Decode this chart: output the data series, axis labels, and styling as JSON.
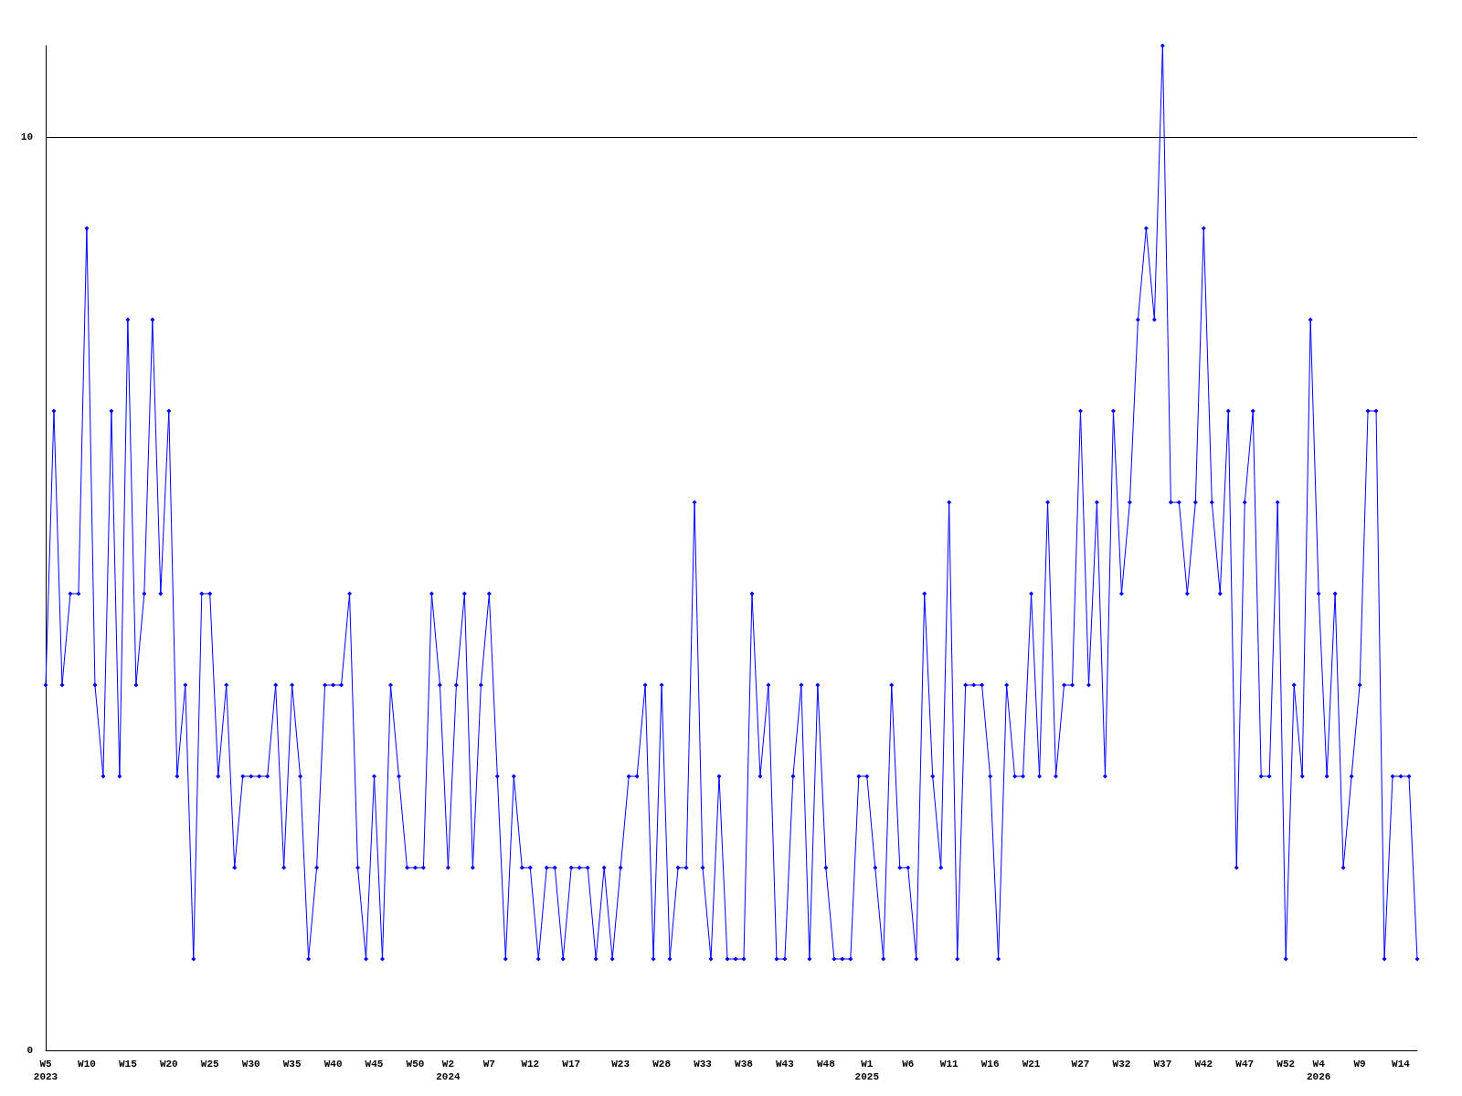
{
  "chart_data": {
    "type": "line",
    "categories": [
      "W5\n2023",
      null,
      null,
      null,
      null,
      "W10",
      null,
      null,
      null,
      null,
      "W15",
      null,
      null,
      null,
      null,
      "W20",
      null,
      null,
      null,
      null,
      "W25",
      null,
      null,
      null,
      null,
      "W30",
      null,
      null,
      null,
      null,
      "W35",
      null,
      null,
      null,
      null,
      "W40",
      null,
      null,
      null,
      null,
      "W45",
      null,
      null,
      null,
      null,
      "W50",
      null,
      null,
      null,
      "W2\n2024",
      null,
      null,
      null,
      null,
      "W7",
      null,
      null,
      null,
      null,
      "W12",
      null,
      null,
      null,
      null,
      "W17",
      null,
      null,
      null,
      null,
      null,
      "W23",
      null,
      null,
      null,
      null,
      "W28",
      null,
      null,
      null,
      null,
      "W33",
      null,
      null,
      null,
      null,
      "W38",
      null,
      null,
      null,
      null,
      "W43",
      null,
      null,
      null,
      null,
      "W48",
      null,
      null,
      null,
      null,
      "W1\n2025",
      null,
      null,
      null,
      null,
      "W6",
      null,
      null,
      null,
      null,
      "W11",
      null,
      null,
      null,
      null,
      "W16",
      null,
      null,
      null,
      null,
      "W21",
      null,
      null,
      null,
      null,
      null,
      "W27",
      null,
      null,
      null,
      null,
      "W32",
      null,
      null,
      null,
      null,
      "W37",
      null,
      null,
      null,
      null,
      "W42",
      null,
      null,
      null,
      null,
      "W47",
      null,
      null,
      null,
      null,
      "W52",
      null,
      null,
      null,
      "W4\n2026",
      null,
      null,
      null,
      null,
      "W9",
      null,
      null,
      null,
      null,
      "W14",
      null,
      null
    ],
    "series": [
      {
        "color": "#0000ff",
        "values": [
          4,
          7,
          4,
          5,
          5,
          9,
          4,
          3,
          7,
          3,
          8,
          4,
          5,
          8,
          5,
          7,
          3,
          4,
          1,
          5,
          5,
          3,
          4,
          2,
          3,
          3,
          3,
          3,
          4,
          2,
          4,
          3,
          1,
          2,
          4,
          4,
          4,
          5,
          2,
          1,
          3,
          1,
          4,
          3,
          2,
          2,
          2,
          5,
          4,
          2,
          4,
          5,
          2,
          4,
          5,
          3,
          1,
          3,
          2,
          2,
          1,
          2,
          2,
          1,
          2,
          2,
          2,
          1,
          2,
          1,
          2,
          3,
          3,
          4,
          1,
          4,
          1,
          2,
          2,
          6,
          2,
          1,
          3,
          1,
          1,
          1,
          5,
          3,
          4,
          1,
          1,
          3,
          4,
          1,
          4,
          2,
          1,
          1,
          1,
          3,
          3,
          2,
          1,
          4,
          2,
          2,
          1,
          5,
          3,
          2,
          6,
          1,
          4,
          4,
          4,
          3,
          1,
          4,
          3,
          3,
          5,
          3,
          6,
          3,
          4,
          4,
          7,
          4,
          6,
          3,
          7,
          5,
          6,
          8,
          9,
          8,
          11,
          6,
          6,
          5,
          6,
          9,
          6,
          5,
          7,
          2,
          6,
          7,
          3,
          3,
          6,
          1,
          4,
          3,
          8,
          5,
          3,
          5,
          2,
          3,
          4,
          7,
          7,
          1,
          3,
          3,
          3,
          1
        ]
      }
    ],
    "ylim": [
      0,
      11
    ],
    "yticks": [
      0,
      10
    ],
    "grid": "y",
    "marker": "diamond",
    "line_style": "solid"
  }
}
